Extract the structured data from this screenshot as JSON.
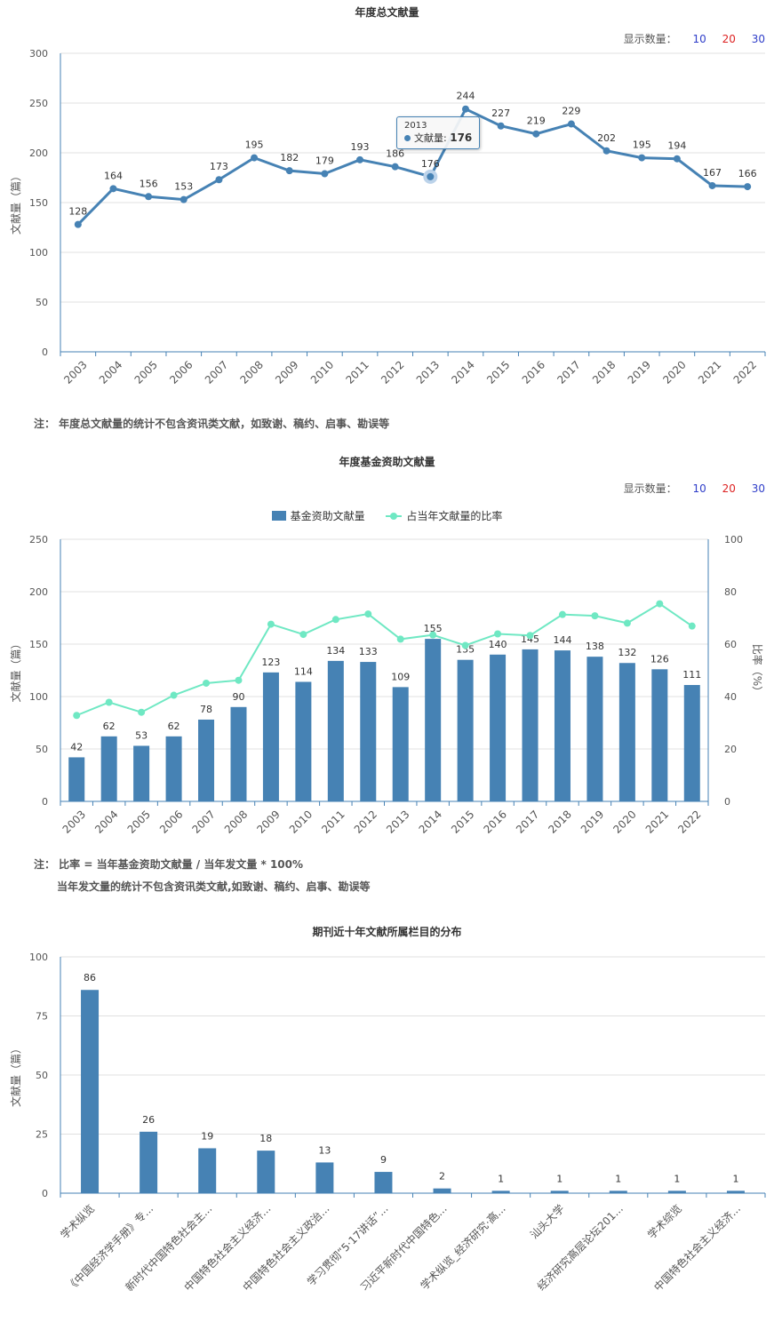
{
  "chart1": {
    "title": "年度总文献量",
    "count_label": "显示数量：",
    "count_options": [
      "10",
      "20",
      "30"
    ],
    "ylabel": "文献量（篇）",
    "note": "注：   年度总文献量的统计不包含资讯类文献，如致谢、稿约、启事、勘误等",
    "tooltip": {
      "year": "2013",
      "label": "文献量:",
      "value": "176"
    }
  },
  "chart2": {
    "title": "年度基金资助文献量",
    "count_label": "显示数量：",
    "count_options": [
      "10",
      "20",
      "30"
    ],
    "ylabel_left": "文献量（篇）",
    "ylabel_right": "比率（%）",
    "legend_bar": "基金资助文献量",
    "legend_line": "占当年文献量的比率",
    "note_line1": "注：   比率 = 当年基金资助文献量 / 当年发文量 * 100%",
    "note_line2": "当年发文量的统计不包含资讯类文献,如致谢、稿约、启事、勘误等"
  },
  "chart3": {
    "title": "期刊近十年文献所属栏目的分布",
    "ylabel": "文献量（篇）"
  },
  "colors": {
    "primary": "#4682b4",
    "ratio_line": "#6fe8c3",
    "grid": "#e0e0e0"
  },
  "chart_data": [
    {
      "type": "line",
      "title": "年度总文献量",
      "ylabel": "文献量（篇）",
      "x": [
        "2003",
        "2004",
        "2005",
        "2006",
        "2007",
        "2008",
        "2009",
        "2010",
        "2011",
        "2012",
        "2013",
        "2014",
        "2015",
        "2016",
        "2017",
        "2018",
        "2019",
        "2020",
        "2021",
        "2022"
      ],
      "values": [
        128,
        164,
        156,
        153,
        173,
        195,
        182,
        179,
        193,
        186,
        176,
        244,
        227,
        219,
        229,
        202,
        195,
        194,
        167,
        166
      ],
      "ylim": [
        0,
        300
      ],
      "yticks": [
        0,
        50,
        100,
        150,
        200,
        250,
        300
      ],
      "grid": true
    },
    {
      "type": "bar",
      "title": "年度基金资助文献量",
      "ylabel": "文献量（篇）",
      "y2label": "比率（%）",
      "categories": [
        "2003",
        "2004",
        "2005",
        "2006",
        "2007",
        "2008",
        "2009",
        "2010",
        "2011",
        "2012",
        "2013",
        "2014",
        "2015",
        "2016",
        "2017",
        "2018",
        "2019",
        "2020",
        "2021",
        "2022"
      ],
      "series": [
        {
          "name": "基金资助文献量",
          "type": "bar",
          "axis": "left",
          "values": [
            42,
            62,
            53,
            62,
            78,
            90,
            123,
            114,
            134,
            133,
            109,
            155,
            135,
            140,
            145,
            144,
            138,
            132,
            126,
            111
          ]
        },
        {
          "name": "占当年文献量的比率",
          "type": "line",
          "axis": "right",
          "values": [
            32.8,
            37.8,
            34.0,
            40.5,
            45.1,
            46.2,
            67.6,
            63.7,
            69.4,
            71.5,
            61.9,
            63.5,
            59.5,
            63.9,
            63.3,
            71.3,
            70.8,
            68.0,
            75.4,
            66.9
          ]
        }
      ],
      "ylim": [
        0,
        250
      ],
      "yticks": [
        0,
        50,
        100,
        150,
        200,
        250
      ],
      "y2lim": [
        0,
        100
      ],
      "y2ticks": [
        0,
        20,
        40,
        60,
        80,
        100
      ],
      "legend": "top-center",
      "grid": true
    },
    {
      "type": "bar",
      "title": "期刊近十年文献所属栏目的分布",
      "ylabel": "文献量（篇）",
      "categories": [
        "学术纵览",
        "《中国经济学手册》专...",
        "新时代中国特色社会主...",
        "中国特色社会主义经济...",
        "中国特色社会主义政治...",
        "学习贯彻“5·17讲话”...",
        "习近平新时代中国特色...",
        "学术纵览_经济研究·高...",
        "汕头大学",
        "经济研究高层论坛201...",
        "学术综览",
        "中国特色社会主义经济..."
      ],
      "values": [
        86,
        26,
        19,
        18,
        13,
        9,
        2,
        1,
        1,
        1,
        1,
        1
      ],
      "ylim": [
        0,
        100
      ],
      "yticks": [
        0,
        25,
        50,
        75,
        100
      ],
      "grid": true
    }
  ]
}
